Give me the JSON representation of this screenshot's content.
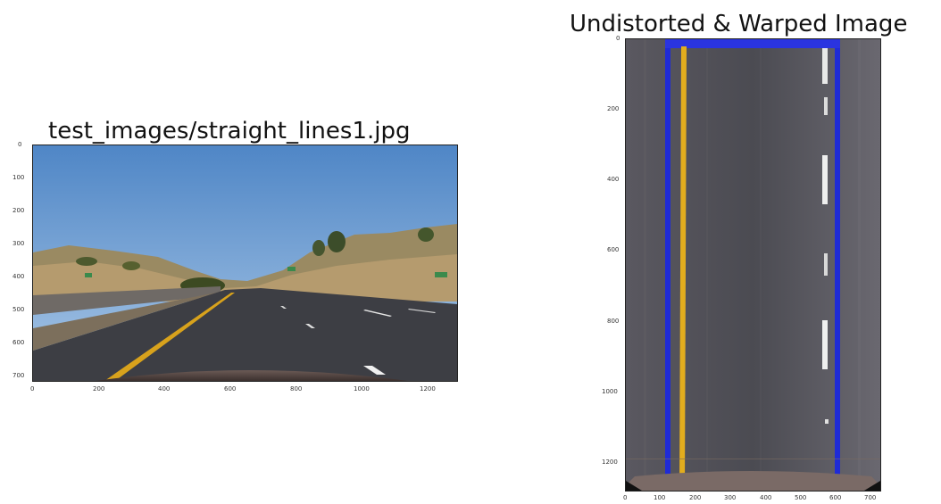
{
  "left_panel": {
    "title": "test_images/straight_lines1.jpg",
    "y_ticks": [
      "0",
      "100",
      "200",
      "300",
      "400",
      "500",
      "600",
      "700"
    ],
    "x_ticks": [
      "0",
      "200",
      "400",
      "600",
      "800",
      "1000",
      "1200"
    ]
  },
  "right_panel": {
    "title": "Undistorted & Warped Image",
    "y_ticks": [
      "0",
      "200",
      "400",
      "600",
      "800",
      "1000",
      "1200"
    ],
    "x_ticks": [
      "0",
      "100",
      "200",
      "300",
      "400",
      "500",
      "600",
      "700"
    ]
  }
}
